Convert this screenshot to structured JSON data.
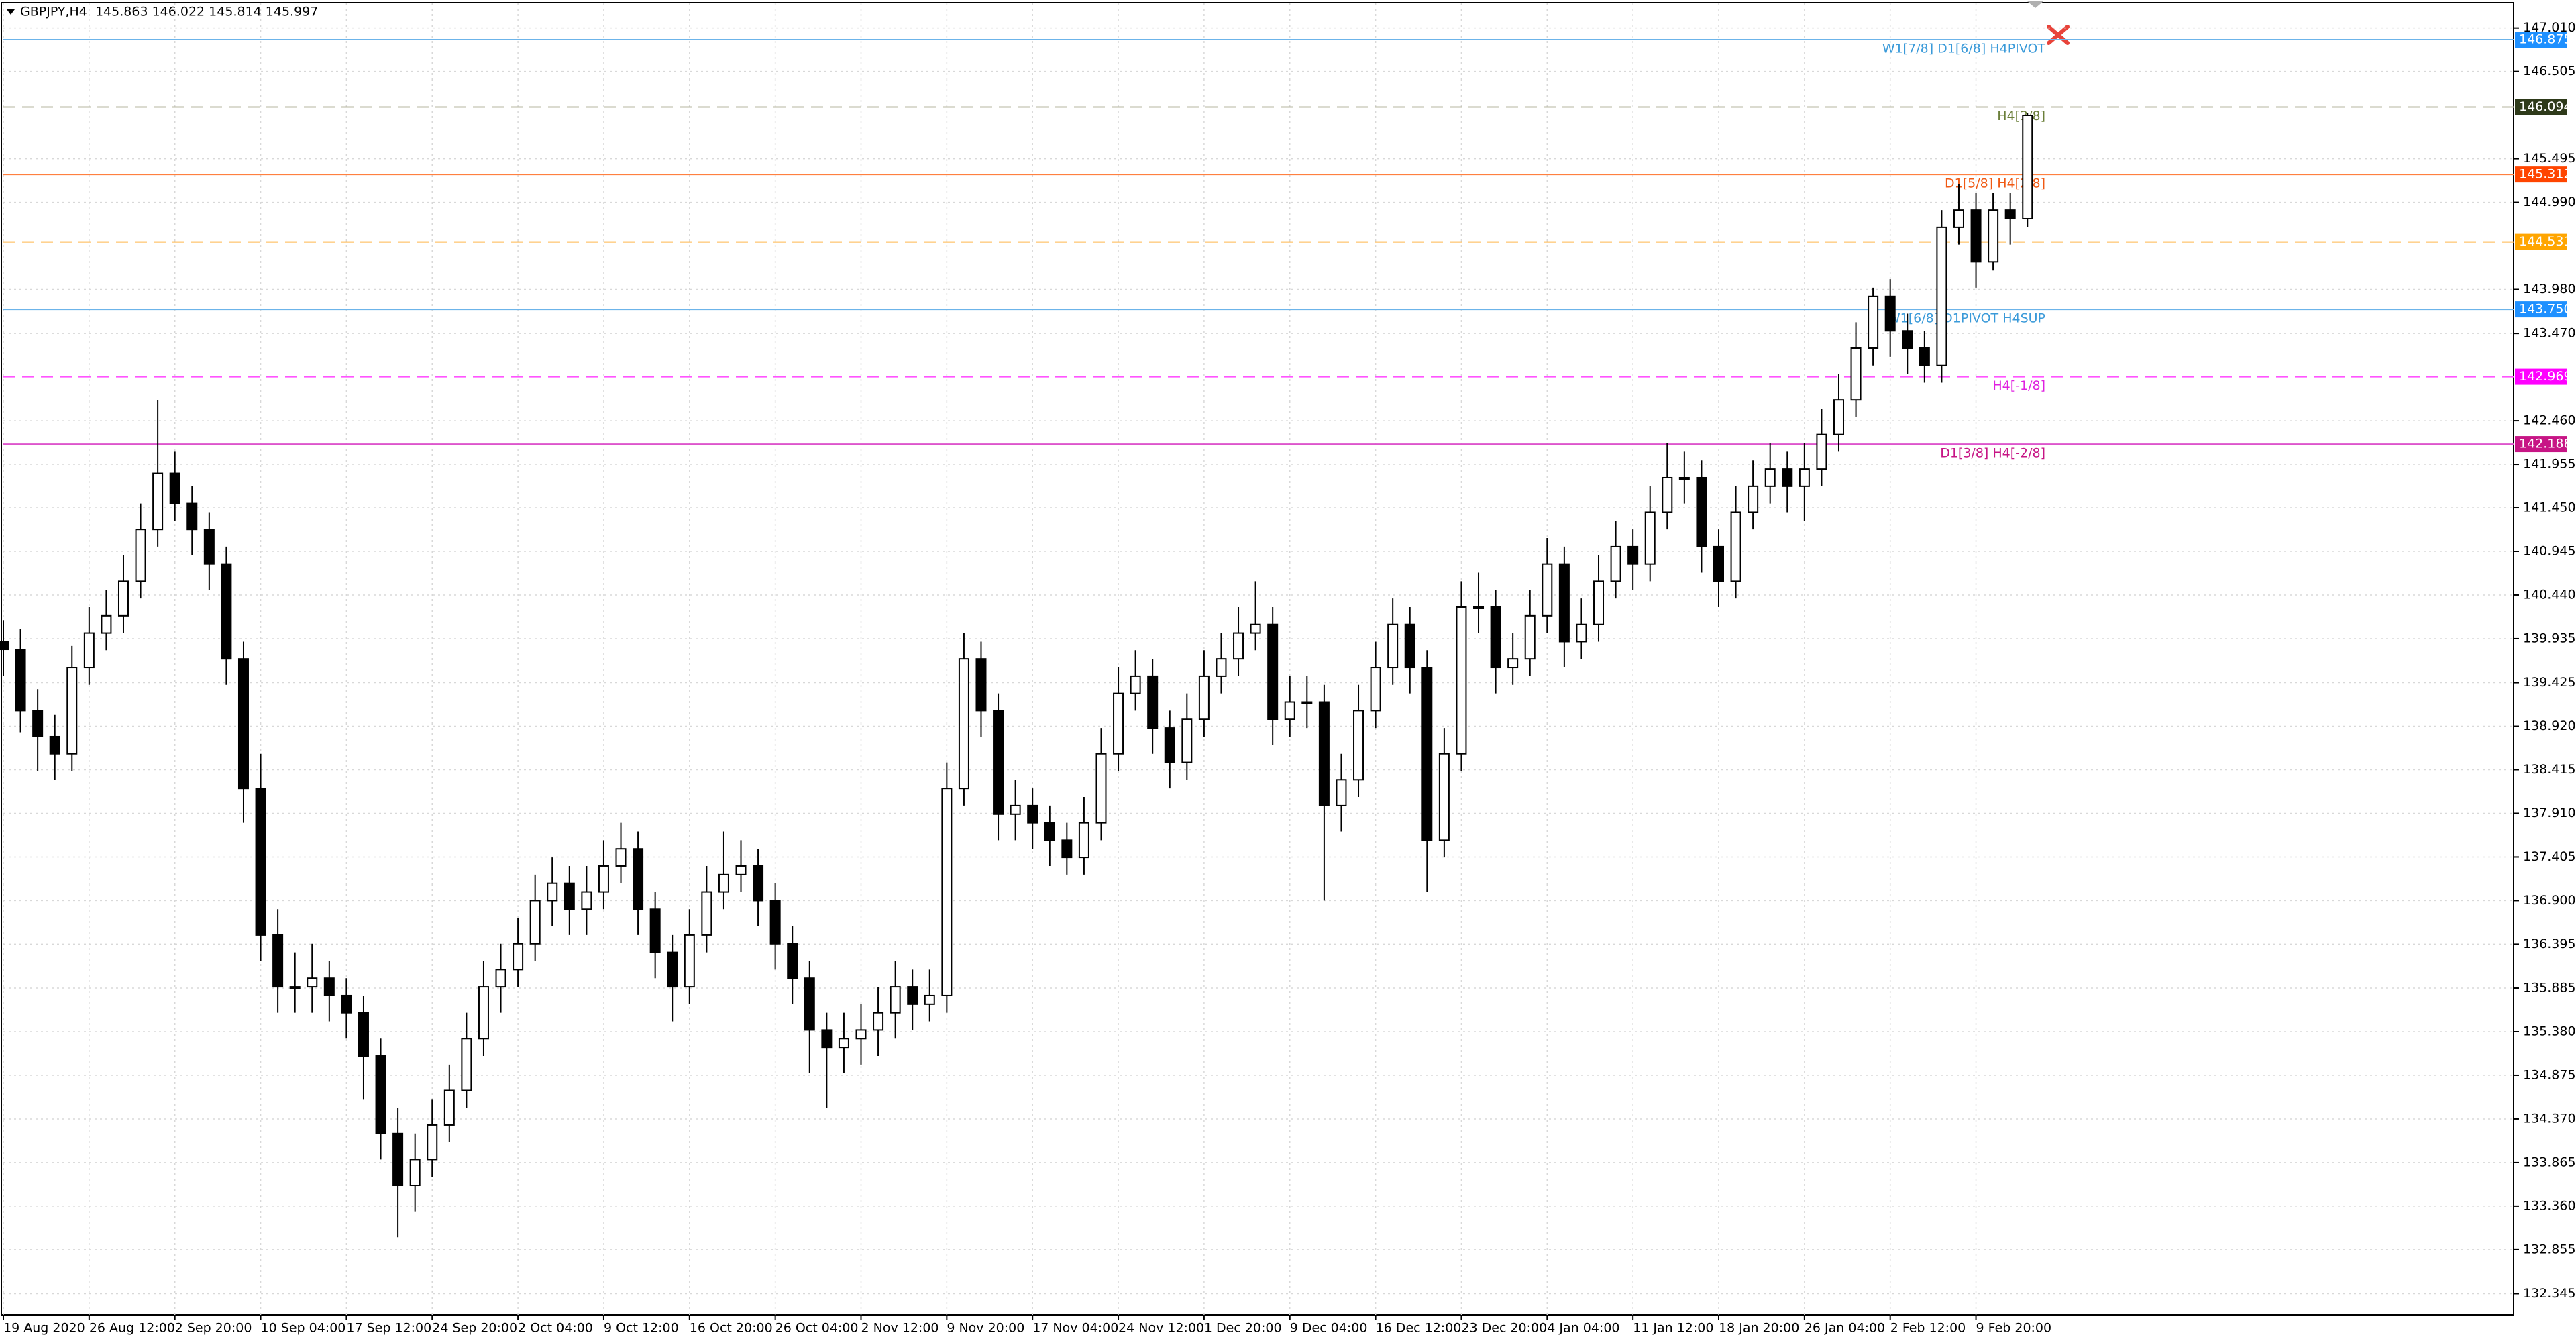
{
  "chart_data": {
    "type": "candlestick",
    "title": "GBPJPY,H4  145.863 146.022 145.814 145.997",
    "categories": [
      "19 Aug 2020",
      null,
      null,
      null,
      null,
      "26 Aug 12:00",
      null,
      null,
      null,
      null,
      "2 Sep 20:00",
      null,
      null,
      null,
      null,
      "10 Sep 04:00",
      null,
      null,
      null,
      null,
      "17 Sep 12:00",
      null,
      null,
      null,
      null,
      "24 Sep 20:00",
      null,
      null,
      null,
      null,
      "2 Oct 04:00",
      null,
      null,
      null,
      null,
      "9 Oct 12:00",
      null,
      null,
      null,
      null,
      "16 Oct 20:00",
      null,
      null,
      null,
      null,
      "26 Oct 04:00",
      null,
      null,
      null,
      null,
      "2 Nov 12:00",
      null,
      null,
      null,
      null,
      "9 Nov 20:00",
      null,
      null,
      null,
      null,
      "17 Nov 04:00",
      null,
      null,
      null,
      null,
      "24 Nov 12:00",
      null,
      null,
      null,
      null,
      "1 Dec 20:00",
      null,
      null,
      null,
      null,
      "9 Dec 04:00",
      null,
      null,
      null,
      null,
      "16 Dec 12:00",
      null,
      null,
      null,
      null,
      "23 Dec 20:00",
      null,
      null,
      null,
      null,
      "4 Jan 04:00",
      null,
      null,
      null,
      null,
      "11 Jan 12:00",
      null,
      null,
      null,
      null,
      "18 Jan 20:00",
      null,
      null,
      null,
      null,
      "26 Jan 04:00",
      null,
      null,
      null,
      null,
      "2 Feb 12:00",
      null,
      null,
      null,
      null,
      "9 Feb 20:00",
      null,
      null,
      null
    ],
    "open": [
      139.9,
      139.81,
      139.1,
      138.8,
      138.6,
      139.6,
      140.0,
      140.2,
      140.6,
      141.2,
      141.85,
      141.5,
      141.2,
      140.8,
      139.7,
      138.2,
      136.5,
      135.9,
      135.9,
      136.0,
      135.8,
      135.6,
      135.1,
      134.2,
      133.6,
      133.9,
      134.3,
      134.7,
      135.3,
      135.9,
      136.1,
      136.4,
      136.9,
      137.1,
      136.8,
      137.0,
      137.3,
      137.5,
      136.8,
      136.3,
      135.9,
      136.5,
      137.0,
      137.2,
      137.3,
      136.9,
      136.4,
      136.0,
      135.4,
      135.2,
      135.3,
      135.4,
      135.6,
      135.9,
      135.7,
      135.8,
      138.2,
      139.7,
      139.1,
      137.9,
      138.0,
      137.8,
      137.6,
      137.4,
      137.8,
      138.6,
      139.3,
      139.5,
      138.9,
      138.5,
      139.0,
      139.5,
      139.7,
      140.0,
      140.1,
      139.0,
      139.2,
      139.2,
      138.0,
      138.3,
      139.1,
      139.6,
      140.1,
      139.6,
      137.6,
      138.6,
      140.3,
      140.3,
      139.6,
      139.7,
      140.2,
      140.8,
      139.9,
      140.1,
      140.6,
      141.0,
      140.8,
      141.4,
      141.8,
      141.8,
      141.0,
      140.6,
      141.4,
      141.7,
      141.9,
      141.7,
      141.9,
      142.3,
      142.7,
      143.3,
      143.9,
      143.5,
      143.3,
      143.1,
      144.7,
      144.9,
      144.3,
      144.9,
      144.8
    ],
    "high": [
      140.15,
      140.05,
      139.35,
      139.05,
      139.85,
      140.3,
      140.5,
      140.9,
      141.5,
      142.7,
      142.1,
      141.7,
      141.4,
      141.0,
      139.9,
      138.6,
      136.8,
      136.3,
      136.4,
      136.2,
      136.0,
      135.8,
      135.3,
      134.5,
      134.2,
      134.6,
      135.0,
      135.6,
      136.2,
      136.4,
      136.7,
      137.2,
      137.4,
      137.3,
      137.3,
      137.6,
      137.8,
      137.7,
      137.0,
      136.5,
      136.8,
      137.3,
      137.7,
      137.6,
      137.5,
      137.1,
      136.6,
      136.2,
      135.6,
      135.6,
      135.7,
      135.9,
      136.2,
      136.1,
      136.1,
      138.5,
      140.0,
      139.9,
      139.3,
      138.3,
      138.2,
      138.0,
      137.8,
      138.1,
      138.9,
      139.6,
      139.8,
      139.7,
      139.1,
      139.3,
      139.8,
      140.0,
      140.3,
      140.6,
      140.3,
      139.5,
      139.5,
      139.4,
      138.6,
      139.4,
      139.9,
      140.4,
      140.3,
      139.8,
      138.9,
      140.6,
      140.7,
      140.5,
      140.0,
      140.5,
      141.1,
      141.0,
      140.4,
      140.9,
      141.3,
      141.2,
      141.7,
      142.2,
      142.1,
      142.0,
      141.2,
      141.7,
      142.0,
      142.2,
      142.1,
      142.2,
      142.6,
      143.0,
      143.6,
      144.0,
      144.1,
      143.7,
      143.5,
      144.9,
      145.2,
      145.1,
      145.1,
      145.1,
      146.022
    ],
    "low": [
      139.5,
      138.85,
      138.4,
      138.3,
      138.4,
      139.4,
      139.8,
      140.0,
      140.4,
      141.0,
      141.3,
      140.9,
      140.5,
      139.4,
      137.8,
      136.2,
      135.6,
      135.6,
      135.6,
      135.5,
      135.3,
      134.6,
      133.9,
      133.0,
      133.3,
      133.7,
      134.1,
      134.5,
      135.1,
      135.6,
      135.9,
      136.2,
      136.6,
      136.5,
      136.5,
      136.8,
      137.1,
      136.5,
      136.0,
      135.5,
      135.7,
      136.3,
      136.8,
      137.0,
      136.6,
      136.1,
      135.7,
      134.9,
      134.5,
      134.9,
      135.0,
      135.1,
      135.3,
      135.4,
      135.5,
      135.6,
      138.0,
      138.8,
      137.6,
      137.6,
      137.5,
      137.3,
      137.2,
      137.2,
      137.6,
      138.4,
      139.1,
      138.6,
      138.2,
      138.3,
      138.8,
      139.3,
      139.5,
      139.8,
      138.7,
      138.8,
      138.9,
      136.9,
      137.7,
      138.1,
      138.9,
      139.4,
      139.3,
      137.0,
      137.4,
      138.4,
      140.0,
      139.3,
      139.4,
      139.5,
      140.0,
      139.6,
      139.7,
      139.9,
      140.4,
      140.5,
      140.6,
      141.2,
      141.5,
      140.7,
      140.3,
      140.4,
      141.2,
      141.5,
      141.4,
      141.3,
      141.7,
      142.1,
      142.5,
      143.1,
      143.2,
      143.0,
      142.9,
      142.9,
      144.5,
      144.0,
      144.2,
      144.5,
      144.7
    ],
    "close": [
      139.81,
      139.1,
      138.8,
      138.6,
      139.6,
      140.0,
      140.2,
      140.6,
      141.2,
      141.85,
      141.5,
      141.2,
      140.8,
      139.7,
      138.2,
      136.5,
      135.9,
      135.9,
      136.0,
      135.8,
      135.6,
      135.1,
      134.2,
      133.6,
      133.9,
      134.3,
      134.7,
      135.3,
      135.9,
      136.1,
      136.4,
      136.9,
      137.1,
      136.8,
      137.0,
      137.3,
      137.5,
      136.8,
      136.3,
      135.9,
      136.5,
      137.0,
      137.2,
      137.3,
      136.9,
      136.4,
      136.0,
      135.4,
      135.2,
      135.3,
      135.4,
      135.6,
      135.9,
      135.7,
      135.8,
      138.2,
      139.7,
      139.1,
      137.9,
      138.0,
      137.8,
      137.6,
      137.4,
      137.8,
      138.6,
      139.3,
      139.5,
      138.9,
      138.5,
      139.0,
      139.5,
      139.7,
      140.0,
      140.1,
      139.0,
      139.2,
      139.2,
      138.0,
      138.3,
      139.1,
      139.6,
      140.1,
      139.6,
      137.6,
      138.6,
      140.3,
      140.3,
      139.6,
      139.7,
      140.2,
      140.8,
      139.9,
      140.1,
      140.6,
      141.0,
      140.8,
      141.4,
      141.8,
      141.8,
      141.0,
      140.6,
      141.4,
      141.7,
      141.9,
      141.7,
      141.9,
      142.3,
      142.7,
      143.3,
      143.9,
      143.5,
      143.3,
      143.1,
      144.7,
      144.9,
      144.3,
      144.9,
      144.8,
      145.997
    ],
    "up_color": "#ffffff",
    "down_color": "#000000",
    "wick_color": "#000000",
    "ylim": [
      132.1,
      147.295
    ],
    "yticks": [
      {
        "value": 147.01,
        "label": "147.010"
      },
      146.505,
      145.495,
      {
        "value": 144.99,
        "label": "144.990"
      },
      {
        "value": 143.98,
        "label": "143.980"
      },
      {
        "value": 143.47,
        "label": "143.470"
      },
      {
        "value": 142.46,
        "label": "142.460"
      },
      141.955,
      {
        "value": 141.45,
        "label": "141.450"
      },
      140.945,
      {
        "value": 140.44,
        "label": "140.440"
      },
      139.935,
      139.425,
      {
        "value": 138.92,
        "label": "138.920"
      },
      138.415,
      {
        "value": 137.91,
        "label": "137.910"
      },
      137.405,
      {
        "value": 136.9,
        "label": "136.900"
      },
      136.395,
      135.885,
      {
        "value": 135.38,
        "label": "135.380"
      },
      134.875,
      {
        "value": 134.37,
        "label": "134.370"
      },
      133.865,
      {
        "value": 133.36,
        "label": "133.360"
      },
      132.855,
      132.345
    ],
    "grid": true,
    "levels": [
      {
        "name": "W1[7/8] D1[6/8] H4PIVOT",
        "price": 146.875,
        "color": "#6cb4ea",
        "box_color": "#1e90ff",
        "text_color": "#3a9ad9",
        "dashed": false
      },
      {
        "name": "H4[3/8]",
        "price": 146.094,
        "color": "#b7b7a0",
        "box_color": "#2e3a1a",
        "text_color": "#6b7f3a",
        "dashed": true
      },
      {
        "name": "D1[5/8] H4[2/8]",
        "price": 145.312,
        "color": "#ff8040",
        "box_color": "#ff4500",
        "text_color": "#f05a14",
        "dashed": false
      },
      {
        "price": 144.531,
        "color": "#ffb84d",
        "box_color": "#ffa500",
        "text_color": "#ffa500",
        "dashed": true
      },
      {
        "name": "W1[6/8] D1PIVOT H4SUP",
        "price": 143.75,
        "price_label": "143.750",
        "color": "#6cb4ea",
        "box_color": "#1e90ff",
        "text_color": "#3a9ad9",
        "dashed": false
      },
      {
        "name": "H4[-1/8]",
        "price": 142.969,
        "color": "#ff55ff",
        "box_color": "#ff00ff",
        "text_color": "#e020e0",
        "dashed": true
      },
      {
        "name": "D1[3/8] H4[-2/8]",
        "price": 142.188,
        "color": "#dd55cc",
        "box_color": "#c71585",
        "text_color": "#c71585",
        "dashed": false
      }
    ]
  }
}
